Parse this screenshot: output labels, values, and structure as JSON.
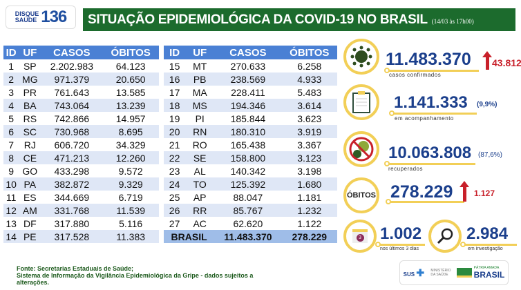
{
  "logo": {
    "line1": "DISQUE",
    "line2": "SAÚDE",
    "number": "136"
  },
  "header": {
    "title": "SITUAÇÃO EPIDEMIOLÓGICA DA COVID-19 NO BRASIL",
    "date": "(14/03 às 17h00)"
  },
  "table": {
    "columns": [
      "ID",
      "UF",
      "CASOS",
      "ÓBITOS"
    ],
    "rows_left": [
      [
        "1",
        "SP",
        "2.202.983",
        "64.123"
      ],
      [
        "2",
        "MG",
        "971.379",
        "20.650"
      ],
      [
        "3",
        "PR",
        "761.643",
        "13.585"
      ],
      [
        "4",
        "BA",
        "743.064",
        "13.239"
      ],
      [
        "5",
        "RS",
        "742.866",
        "14.957"
      ],
      [
        "6",
        "SC",
        "730.968",
        "8.695"
      ],
      [
        "7",
        "RJ",
        "606.720",
        "34.329"
      ],
      [
        "8",
        "CE",
        "471.213",
        "12.260"
      ],
      [
        "9",
        "GO",
        "433.298",
        "9.572"
      ],
      [
        "10",
        "PA",
        "382.872",
        "9.329"
      ],
      [
        "11",
        "ES",
        "344.669",
        "6.719"
      ],
      [
        "12",
        "AM",
        "331.768",
        "11.539"
      ],
      [
        "13",
        "DF",
        "317.880",
        "5.116"
      ],
      [
        "14",
        "PE",
        "317.528",
        "11.383"
      ]
    ],
    "rows_right": [
      [
        "15",
        "MT",
        "270.633",
        "6.258"
      ],
      [
        "16",
        "PB",
        "238.569",
        "4.933"
      ],
      [
        "17",
        "MA",
        "228.411",
        "5.483"
      ],
      [
        "18",
        "MS",
        "194.346",
        "3.614"
      ],
      [
        "19",
        "PI",
        "185.844",
        "3.623"
      ],
      [
        "20",
        "RN",
        "180.310",
        "3.919"
      ],
      [
        "21",
        "RO",
        "165.438",
        "3.367"
      ],
      [
        "22",
        "SE",
        "158.800",
        "3.123"
      ],
      [
        "23",
        "AL",
        "140.342",
        "3.198"
      ],
      [
        "24",
        "TO",
        "125.392",
        "1.680"
      ],
      [
        "25",
        "AP",
        "88.047",
        "1.181"
      ],
      [
        "26",
        "RR",
        "85.767",
        "1.232"
      ],
      [
        "27",
        "AC",
        "62.620",
        "1.122"
      ]
    ],
    "total": {
      "label": "BRASIL",
      "casos": "11.483.370",
      "obitos": "278.229"
    }
  },
  "stats": {
    "confirmados": {
      "value": "11.483.370",
      "delta": "43.812",
      "label": "casos confirmados"
    },
    "acompanhamento": {
      "value": "1.141.333",
      "pct": "(9,9%)",
      "label": "em acompanhamento"
    },
    "recuperados": {
      "value": "10.063.808",
      "pct": "(87,6%)",
      "label": "recuperados"
    },
    "obitos": {
      "badge": "ÓBITOS",
      "value": "278.229",
      "delta": "1.127"
    },
    "ultimos": {
      "value": "1.002",
      "label": "nos últimos 3 dias",
      "calendar": "3"
    },
    "investigacao": {
      "value": "2.984",
      "label": "em investigação"
    }
  },
  "footer": {
    "line1": "Fonte: Secretarias Estaduais de Saúde;",
    "line2": "Sistema de Informação da Vigilância Epidemiológica da Gripe - dados sujeitos a",
    "line3": "alterações."
  },
  "gov": {
    "sus": "SUS",
    "ministerio": "MINISTÉRIO DA SAÚDE",
    "patria": "PÁTRIA AMADA",
    "brasil": "BRASIL"
  },
  "colors": {
    "green": "#1c6b2d",
    "blue_header": "#4a80d4",
    "row_alt": "#dfe7f6",
    "yellow": "#f2cf57",
    "navy": "#1b3f8c",
    "red": "#c8202a"
  }
}
